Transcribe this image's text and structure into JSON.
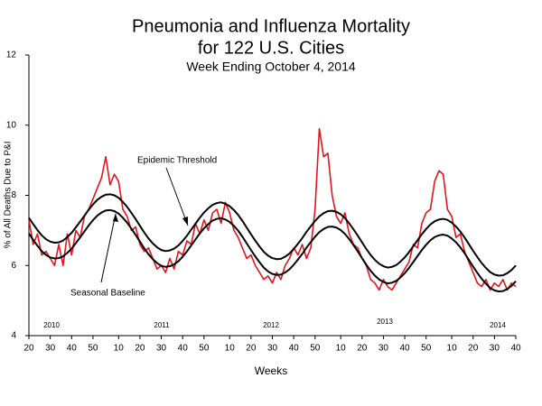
{
  "chart_data": {
    "type": "line",
    "title": "Pneumonia and Influenza Mortality",
    "title_line2": "for 122 U.S. Cities",
    "subtitle": "Week Ending October 4, 2014",
    "x_label": "Weeks",
    "y_label": "% of All Deaths Due to P&I",
    "year_labels": [
      "2010",
      "2011",
      "2012",
      "2013",
      "2014"
    ],
    "xlim": [
      0,
      114
    ],
    "xticks": [
      {
        "value": 0,
        "label": "20"
      },
      {
        "value": 5,
        "label": "30"
      },
      {
        "value": 10,
        "label": "40"
      },
      {
        "value": 15,
        "label": "50"
      },
      {
        "value": 21,
        "label": "10"
      },
      {
        "value": 26,
        "label": "20"
      },
      {
        "value": 31,
        "label": "30"
      },
      {
        "value": 36,
        "label": "40"
      },
      {
        "value": 41,
        "label": "50"
      },
      {
        "value": 47,
        "label": "10"
      },
      {
        "value": 52,
        "label": "20"
      },
      {
        "value": 57,
        "label": "30"
      },
      {
        "value": 62,
        "label": "40"
      },
      {
        "value": 67,
        "label": "50"
      },
      {
        "value": 73,
        "label": "10"
      },
      {
        "value": 78,
        "label": "20"
      },
      {
        "value": 83,
        "label": "30"
      },
      {
        "value": 88,
        "label": "40"
      },
      {
        "value": 93,
        "label": "50"
      },
      {
        "value": 99,
        "label": "10"
      },
      {
        "value": 104,
        "label": "20"
      },
      {
        "value": 109,
        "label": "30"
      },
      {
        "value": 114,
        "label": "40"
      }
    ],
    "ylim": [
      4,
      12
    ],
    "yticks": [
      4,
      6,
      8,
      10,
      12
    ],
    "grid": false,
    "series": [
      {
        "name": "Epidemic Threshold",
        "color": "#000000",
        "values": [
          7.36,
          7.18,
          7.01,
          6.86,
          6.75,
          6.68,
          6.65,
          6.66,
          6.71,
          6.81,
          6.93,
          7.09,
          7.25,
          7.42,
          7.59,
          7.74,
          7.87,
          7.96,
          8.02,
          8.03,
          8.0,
          7.93,
          7.81,
          7.67,
          7.5,
          7.32,
          7.13,
          6.94,
          6.77,
          6.63,
          6.52,
          6.44,
          6.41,
          6.43,
          6.48,
          6.57,
          6.7,
          6.85,
          7.02,
          7.19,
          7.36,
          7.51,
          7.63,
          7.73,
          7.78,
          7.8,
          7.76,
          7.69,
          7.58,
          7.44,
          7.27,
          7.08,
          6.89,
          6.71,
          6.54,
          6.39,
          6.28,
          6.21,
          6.18,
          6.19,
          6.25,
          6.34,
          6.47,
          6.62,
          6.78,
          6.96,
          7.12,
          7.27,
          7.4,
          7.49,
          7.55,
          7.56,
          7.53,
          7.46,
          7.35,
          7.2,
          7.03,
          6.85,
          6.66,
          6.47,
          6.3,
          6.16,
          6.05,
          5.98,
          5.94,
          5.96,
          6.01,
          6.11,
          6.23,
          6.38,
          6.55,
          6.72,
          6.89,
          7.04,
          7.17,
          7.26,
          7.31,
          7.33,
          7.3,
          7.22,
          7.11,
          6.97,
          6.8,
          6.61,
          6.42,
          6.24,
          6.07,
          5.93,
          5.81,
          5.74,
          5.71,
          5.72,
          5.78,
          5.87,
          6.0
        ]
      },
      {
        "name": "Seasonal Baseline",
        "color": "#000000",
        "values": [
          6.91,
          6.73,
          6.56,
          6.41,
          6.3,
          6.23,
          6.2,
          6.21,
          6.26,
          6.36,
          6.48,
          6.64,
          6.8,
          6.97,
          7.14,
          7.29,
          7.42,
          7.51,
          7.57,
          7.58,
          7.55,
          7.48,
          7.36,
          7.22,
          7.05,
          6.87,
          6.68,
          6.49,
          6.32,
          6.18,
          6.07,
          5.99,
          5.96,
          5.98,
          6.03,
          6.12,
          6.25,
          6.4,
          6.57,
          6.74,
          6.91,
          7.06,
          7.18,
          7.28,
          7.33,
          7.35,
          7.31,
          7.24,
          7.13,
          6.99,
          6.82,
          6.63,
          6.44,
          6.26,
          6.09,
          5.94,
          5.83,
          5.76,
          5.73,
          5.74,
          5.8,
          5.89,
          6.02,
          6.17,
          6.33,
          6.51,
          6.67,
          6.82,
          6.95,
          7.04,
          7.1,
          7.11,
          7.08,
          7.01,
          6.9,
          6.75,
          6.58,
          6.4,
          6.21,
          6.02,
          5.85,
          5.71,
          5.6,
          5.53,
          5.49,
          5.51,
          5.56,
          5.66,
          5.78,
          5.93,
          6.1,
          6.27,
          6.44,
          6.59,
          6.72,
          6.81,
          6.86,
          6.88,
          6.85,
          6.77,
          6.66,
          6.52,
          6.35,
          6.16,
          5.97,
          5.79,
          5.62,
          5.48,
          5.36,
          5.29,
          5.26,
          5.27,
          5.33,
          5.42,
          5.55
        ]
      },
      {
        "color": "#e3141b",
        "values": [
          7.3,
          6.6,
          6.9,
          6.3,
          6.4,
          6.2,
          6.0,
          6.6,
          6.0,
          6.9,
          6.3,
          7.0,
          6.8,
          7.4,
          7.6,
          7.9,
          8.2,
          8.5,
          9.1,
          8.3,
          8.6,
          8.4,
          7.6,
          7.4,
          7.0,
          7.1,
          6.6,
          6.4,
          6.5,
          6.2,
          5.9,
          6.0,
          5.8,
          6.2,
          5.9,
          6.4,
          6.3,
          6.7,
          6.6,
          7.2,
          6.9,
          7.3,
          7.0,
          7.5,
          7.6,
          7.2,
          7.8,
          7.5,
          7.0,
          6.8,
          6.5,
          6.2,
          6.3,
          6.0,
          5.8,
          5.6,
          5.7,
          5.5,
          5.8,
          5.6,
          6.0,
          6.2,
          6.5,
          6.3,
          6.6,
          6.2,
          6.5,
          7.6,
          9.9,
          9.1,
          9.2,
          8.0,
          7.4,
          7.2,
          7.5,
          6.9,
          6.6,
          6.5,
          6.2,
          6.0,
          5.6,
          5.5,
          5.3,
          5.6,
          5.4,
          5.3,
          5.5,
          5.7,
          5.9,
          6.1,
          6.6,
          6.5,
          7.2,
          7.5,
          7.6,
          8.4,
          8.7,
          8.6,
          7.6,
          7.4,
          6.8,
          6.9,
          6.4,
          6.1,
          5.8,
          5.5,
          5.4,
          5.6,
          5.3,
          5.5,
          5.4,
          5.6,
          5.3,
          5.5,
          5.4
        ]
      }
    ]
  }
}
